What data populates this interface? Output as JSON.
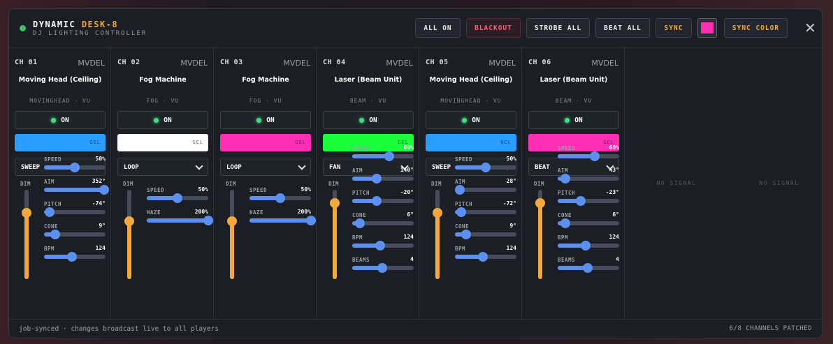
{
  "header": {
    "title_main": "DYNAMIC",
    "title_accent": "DESK-8",
    "subtitle": "DJ LIGHTING CONTROLLER",
    "buttons": {
      "all_on": "ALL ON",
      "blackout": "BLACKOUT",
      "strobe_all": "STROBE ALL",
      "beat_all": "BEAT ALL",
      "sync": "SYNC",
      "sync_color": "SYNC COLOR"
    },
    "sync_swatch_color": "#ff2fb4",
    "close_icon": "close-icon",
    "close_glyph": "✕",
    "status_color": "#3fbf6a"
  },
  "channels": [
    {
      "num": "CH 01",
      "model": "MVDEL",
      "name": "Moving Head (Ceiling)",
      "type": "MOVINGHEAD · VU",
      "on_label": "ON",
      "gel_label": "GEL",
      "gel_color": "#2a9dff",
      "mode": "SWEEP",
      "dim_label": "DIM",
      "dim": 0.74,
      "controls": [
        {
          "label": "SPEED",
          "value": "50%",
          "level": 0.5
        },
        {
          "label": "AIM",
          "value": "352°",
          "level": 0.98
        },
        {
          "label": "PITCH",
          "value": "-74°",
          "level": 0.09
        },
        {
          "label": "CONE",
          "value": "9°",
          "level": 0.18
        },
        {
          "label": "BPM",
          "value": "124",
          "level": 0.46
        }
      ]
    },
    {
      "num": "CH 02",
      "model": "MVDEL",
      "name": "Fog Machine",
      "type": "FOG · VU",
      "on_label": "ON",
      "gel_label": "GEL",
      "gel_color": "#ffffff",
      "mode": "LOOP",
      "dim_label": "DIM",
      "dim": 0.65,
      "controls": [
        {
          "label": "SPEED",
          "value": "50%",
          "level": 0.5
        },
        {
          "label": "HAZE",
          "value": "200%",
          "level": 1.0
        }
      ]
    },
    {
      "num": "CH 03",
      "model": "MVDEL",
      "name": "Fog Machine",
      "type": "FOG · VU",
      "on_label": "ON",
      "gel_label": "GEL",
      "gel_color": "#ff2fb4",
      "mode": "LOOP",
      "dim_label": "DIM",
      "dim": 0.65,
      "controls": [
        {
          "label": "SPEED",
          "value": "50%",
          "level": 0.5
        },
        {
          "label": "HAZE",
          "value": "200%",
          "level": 1.0
        }
      ]
    },
    {
      "num": "CH 04",
      "model": "MVDEL",
      "name": "Laser (Beam Unit)",
      "type": "BEAM · VU",
      "on_label": "ON",
      "gel_label": "GEL",
      "gel_color": "#1aff3c",
      "mode": "FAN",
      "dim_label": "DIM",
      "dim": 0.85,
      "controls": [
        {
          "label": "SPEED",
          "value": "60%",
          "level": 0.6
        },
        {
          "label": "AIM",
          "value": "140°",
          "level": 0.4
        },
        {
          "label": "PITCH",
          "value": "-20°",
          "level": 0.4
        },
        {
          "label": "CONE",
          "value": "6°",
          "level": 0.12
        },
        {
          "label": "BPM",
          "value": "124",
          "level": 0.46
        },
        {
          "label": "BEAMS",
          "value": "4",
          "level": 0.49
        }
      ]
    },
    {
      "num": "CH 05",
      "model": "MVDEL",
      "name": "Moving Head (Ceiling)",
      "type": "MOVINGHEAD · VU",
      "on_label": "ON",
      "gel_label": "GEL",
      "gel_color": "#2a9dff",
      "mode": "SWEEP",
      "dim_label": "DIM",
      "dim": 0.74,
      "controls": [
        {
          "label": "SPEED",
          "value": "50%",
          "level": 0.5
        },
        {
          "label": "AIM",
          "value": "28°",
          "level": 0.08
        },
        {
          "label": "PITCH",
          "value": "-72°",
          "level": 0.1
        },
        {
          "label": "CONE",
          "value": "9°",
          "level": 0.18
        },
        {
          "label": "BPM",
          "value": "124",
          "level": 0.46
        }
      ]
    },
    {
      "num": "CH 06",
      "model": "MVDEL",
      "name": "Laser (Beam Unit)",
      "type": "BEAM · VU",
      "on_label": "ON",
      "gel_label": "GEL",
      "gel_color": "#ff2fb4",
      "mode": "BEAT",
      "dim_label": "DIM",
      "dim": 0.85,
      "controls": [
        {
          "label": "SPEED",
          "value": "60%",
          "level": 0.6
        },
        {
          "label": "AIM",
          "value": "43°",
          "level": 0.12
        },
        {
          "label": "PITCH",
          "value": "-23°",
          "level": 0.38
        },
        {
          "label": "CONE",
          "value": "6°",
          "level": 0.12
        },
        {
          "label": "BPM",
          "value": "124",
          "level": 0.46
        },
        {
          "label": "BEAMS",
          "value": "4",
          "level": 0.49
        }
      ]
    }
  ],
  "empty_slots": [
    "NO SIGNAL",
    "NO SIGNAL"
  ],
  "footer": {
    "status": "job-synced · changes broadcast live to all players",
    "patched": "6/8 CHANNELS PATCHED"
  }
}
